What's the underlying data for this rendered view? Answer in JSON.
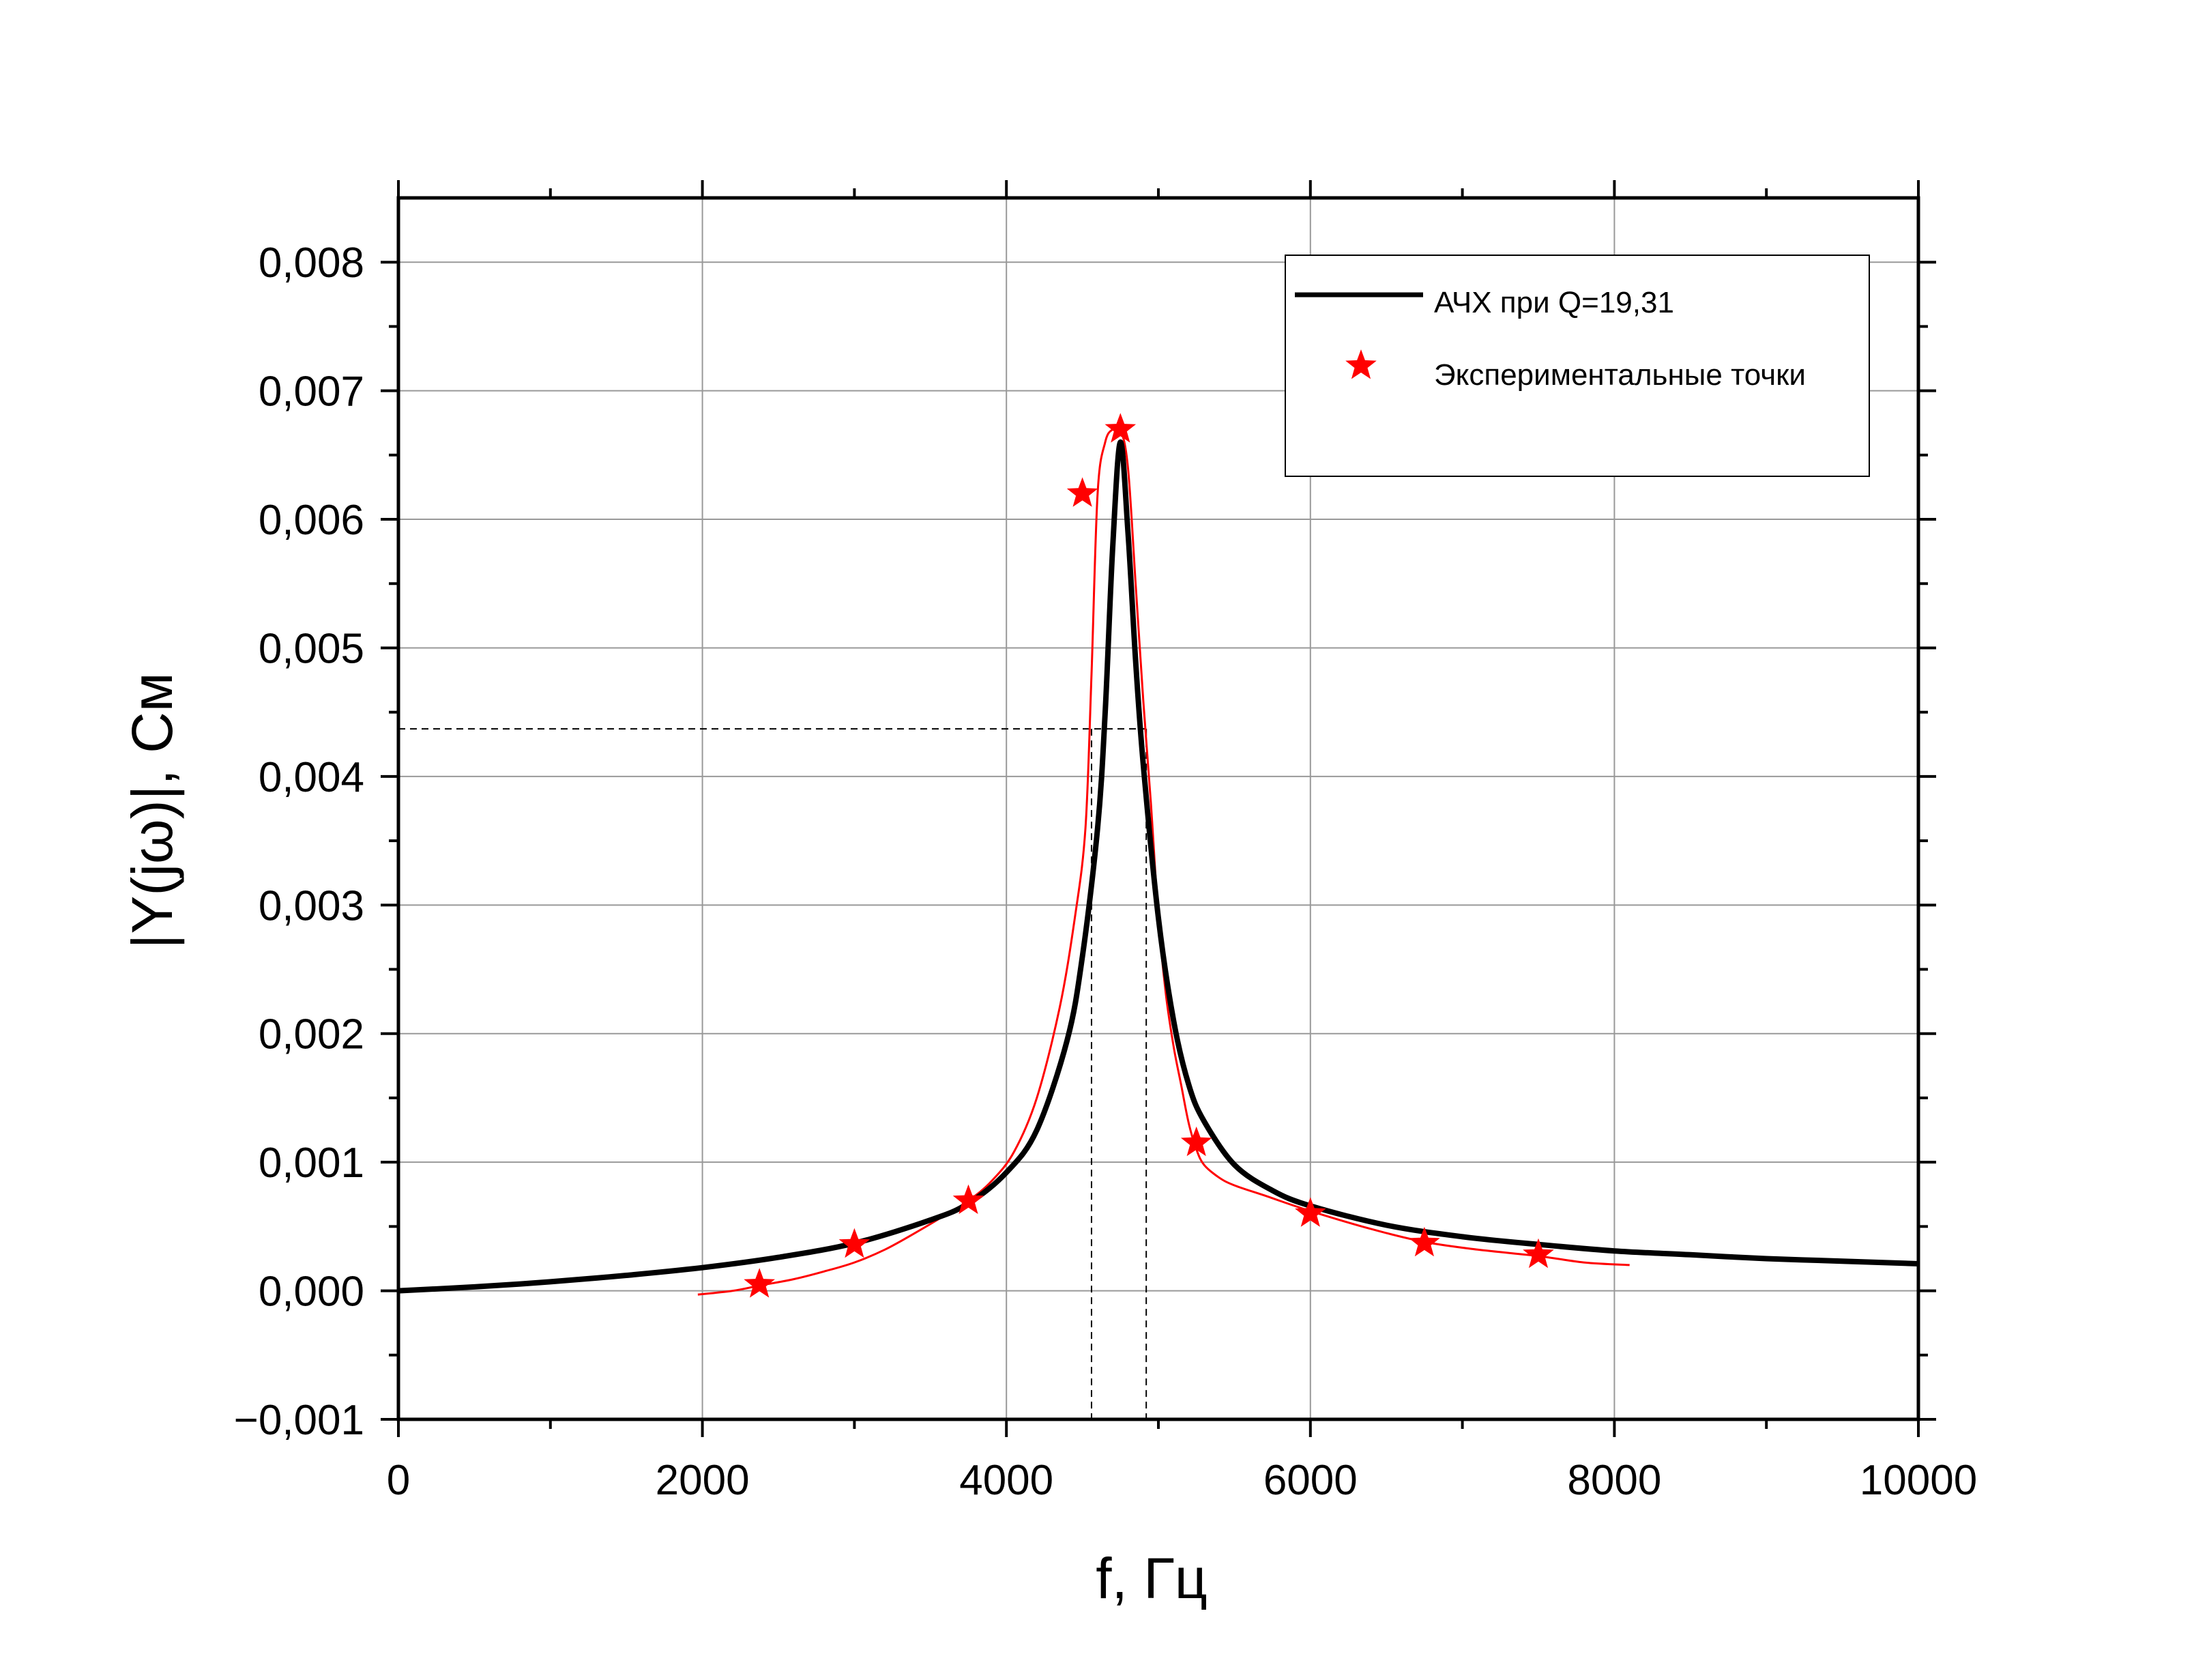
{
  "chart_data": {
    "type": "line",
    "title": "",
    "xlabel": "f, Гц",
    "ylabel": "|Y(jω)|, См",
    "xlim": [
      0,
      10000
    ],
    "ylim": [
      -0.001,
      0.0085
    ],
    "grid": true,
    "legend_position": "top-right",
    "x_ticks": [
      0,
      2000,
      4000,
      6000,
      8000,
      10000
    ],
    "x_tick_labels": [
      "0",
      "2000",
      "4000",
      "6000",
      "8000",
      "10000"
    ],
    "y_ticks": [
      -0.001,
      0,
      0.001,
      0.002,
      0.003,
      0.004,
      0.005,
      0.006,
      0.007,
      0.008
    ],
    "y_tick_labels": [
      "−0,001",
      "0,000",
      "0,001",
      "0,002",
      "0,003",
      "0,004",
      "0,005",
      "0,006",
      "0,007",
      "0,008"
    ],
    "series": [
      {
        "name": "АЧХ при Q=19,31",
        "style": "line",
        "color": "#000000",
        "x": [
          0,
          500,
          1000,
          1500,
          2000,
          2500,
          3000,
          3500,
          3750,
          4000,
          4200,
          4400,
          4500,
          4600,
          4650,
          4700,
          4750,
          4800,
          4850,
          4900,
          5000,
          5100,
          5200,
          5300,
          5500,
          5750,
          6000,
          6500,
          7000,
          7500,
          8000,
          8500,
          9000,
          9500,
          10000
        ],
        "y": [
          0.0,
          3e-05,
          7e-05,
          0.00012,
          0.00018,
          0.00026,
          0.00037,
          0.00055,
          0.00068,
          0.00092,
          0.00125,
          0.00195,
          0.0026,
          0.0036,
          0.0045,
          0.0058,
          0.0066,
          0.0059,
          0.0049,
          0.0041,
          0.0029,
          0.0021,
          0.0016,
          0.00132,
          0.00098,
          0.00078,
          0.00066,
          0.00051,
          0.00042,
          0.00036,
          0.00031,
          0.00028,
          0.00025,
          0.00023,
          0.00021
        ]
      },
      {
        "name": "Экспериментальные точки",
        "style": "markers",
        "marker": "star",
        "color": "#ff0000",
        "x": [
          2375,
          3000,
          3750,
          4500,
          4750,
          5250,
          6000,
          6750,
          7500
        ],
        "y": [
          5e-05,
          0.00036,
          0.0007,
          0.0062,
          0.0067,
          0.00115,
          0.0006,
          0.00037,
          0.00028
        ]
      },
      {
        "name": "",
        "style": "line",
        "color": "#ff0000",
        "x": [
          1970,
          2200,
          2375,
          2600,
          2800,
          3000,
          3200,
          3400,
          3600,
          3750,
          3900,
          4050,
          4200,
          4350,
          4450,
          4520,
          4560,
          4600,
          4650,
          4700,
          4750,
          4800,
          4850,
          4900,
          4950,
          5000,
          5050,
          5100,
          5150,
          5200,
          5250,
          5300,
          5400,
          5500,
          5700,
          6000,
          6400,
          6750,
          7100,
          7500,
          7800,
          8100
        ],
        "y": [
          -3e-05,
          0.0,
          4e-05,
          9e-05,
          0.00015,
          0.00022,
          0.00032,
          0.00045,
          0.00059,
          0.0007,
          0.00085,
          0.00108,
          0.0015,
          0.0022,
          0.0029,
          0.0036,
          0.0048,
          0.0062,
          0.0066,
          0.0067,
          0.0067,
          0.0064,
          0.0055,
          0.0046,
          0.0038,
          0.0029,
          0.0023,
          0.0019,
          0.0016,
          0.0013,
          0.0011,
          0.00098,
          0.00088,
          0.00082,
          0.00074,
          0.00062,
          0.00048,
          0.00038,
          0.00032,
          0.00027,
          0.00022,
          0.0002
        ]
      }
    ],
    "annotations": {
      "half_power_level": 0.00437,
      "f_low": 4560,
      "f_high": 4920
    }
  }
}
